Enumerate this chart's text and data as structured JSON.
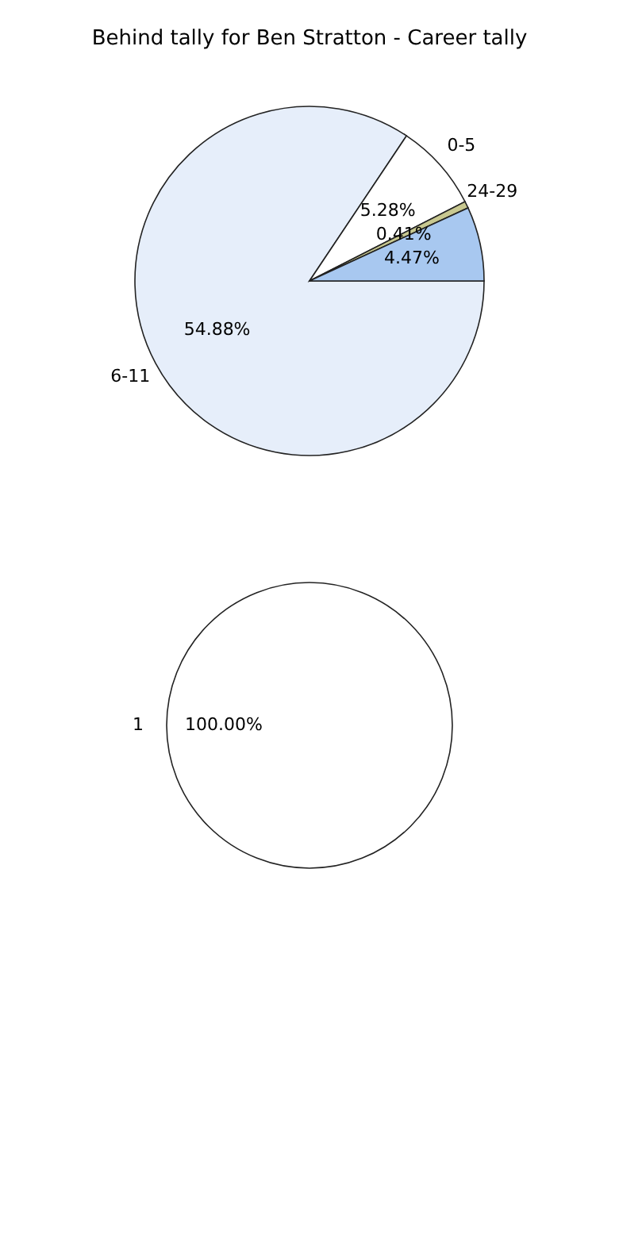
{
  "chart_data": [
    {
      "type": "pie",
      "title": "Behind tally for Ben Stratton - Career tally",
      "categories": [
        "6-11",
        "0-5",
        "24-29",
        null
      ],
      "values": [
        54.88,
        5.28,
        0.41,
        4.47
      ],
      "value_labels": [
        "54.88%",
        "5.28%",
        "0.41%",
        "4.47%"
      ],
      "colors": [
        "#e6eefa",
        "#ffffff",
        "#c8c890",
        "#a8c8f0"
      ]
    },
    {
      "type": "pie",
      "categories": [
        "1"
      ],
      "values": [
        100
      ],
      "value_labels": [
        "100.00%"
      ],
      "colors": [
        "#ffffff"
      ]
    }
  ]
}
